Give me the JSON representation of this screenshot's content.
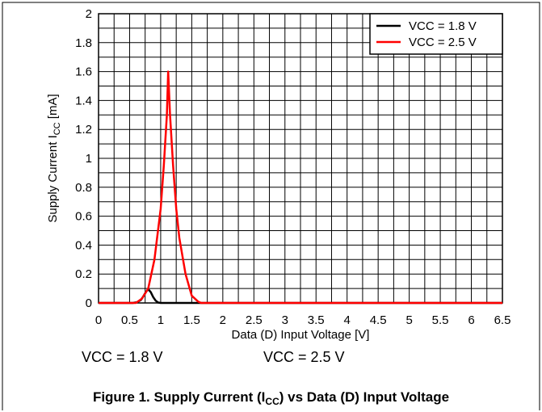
{
  "chart_data": {
    "type": "line",
    "title": "",
    "xlabel": "Data (D) Input Voltage [V]",
    "ylabel": {
      "main": "Supply Current I",
      "sub": "CC",
      "unit": " [mA]"
    },
    "xlim": [
      0,
      6.5
    ],
    "ylim": [
      0,
      2
    ],
    "x_ticks": [
      "0",
      "0.5",
      "1",
      "1.5",
      "2",
      "2.5",
      "3",
      "3.5",
      "4",
      "4.5",
      "5",
      "5.5",
      "6",
      "6.5"
    ],
    "y_ticks": [
      "0",
      "0.2",
      "0.4",
      "0.6",
      "0.8",
      "1",
      "1.2",
      "1.4",
      "1.6",
      "1.8",
      "2"
    ],
    "x_grid_step": 0.25,
    "y_grid_step": 0.1,
    "grid": true,
    "legend_position": "top-right",
    "series": [
      {
        "name": "VCC = 1.8 V",
        "color": "#000000",
        "x": [
          0,
          0.55,
          0.62,
          0.68,
          0.72,
          0.76,
          0.8,
          0.84,
          0.88,
          0.92,
          0.96,
          1.0,
          6.5
        ],
        "y": [
          0,
          0,
          0.005,
          0.02,
          0.045,
          0.075,
          0.095,
          0.075,
          0.04,
          0.015,
          0.003,
          0,
          0
        ]
      },
      {
        "name": "VCC = 2.5 V",
        "color": "#ff0000",
        "x": [
          0,
          0.6,
          0.7,
          0.8,
          0.9,
          1.0,
          1.05,
          1.1,
          1.12,
          1.15,
          1.2,
          1.25,
          1.3,
          1.4,
          1.5,
          1.6,
          1.65,
          6.5
        ],
        "y": [
          0,
          0,
          0.03,
          0.1,
          0.3,
          0.65,
          0.95,
          1.3,
          1.6,
          1.3,
          0.95,
          0.65,
          0.45,
          0.2,
          0.05,
          0.01,
          0,
          0
        ]
      }
    ]
  },
  "notes": {
    "left": "VCC = 1.8 V",
    "right": "VCC = 2.5 V"
  },
  "caption": {
    "before": "Figure 1. Supply Current (I",
    "sub": "CC",
    "after": ") vs Data (D) Input Voltage"
  }
}
